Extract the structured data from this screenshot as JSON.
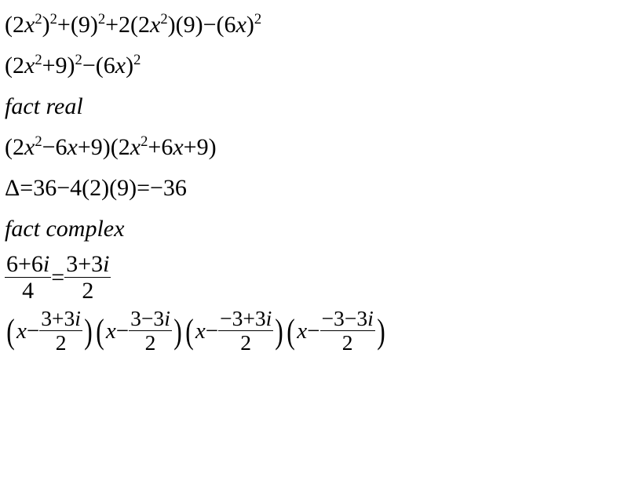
{
  "lines": {
    "l1_p1": "(2",
    "l1_p2": ")",
    "l1_p3": "+(9)",
    "l1_p4": "+2(2",
    "l1_p5": ")(9)−(6",
    "l1_p6": ")",
    "l2_p1": "(2",
    "l2_p2": "+9)",
    "l2_p3": "−(6",
    "l2_p4": ")",
    "l3": "fact real",
    "l4_p1": "(2",
    "l4_p2": "−6",
    "l4_p3": "+9)(2",
    "l4_p4": "+6",
    "l4_p5": "+9)",
    "l5": "Δ=36−4(2)(9)=−36",
    "l6": "fact complex",
    "l7_num1": "6+6",
    "l7_den1": "4",
    "l7_eq": "=",
    "l7_num2": "3+3",
    "l7_den2": "2",
    "l8_f1_num": "3+3",
    "l8_f1_den": "2",
    "l8_f2_num": "3−3",
    "l8_f2_den": "2",
    "l8_f3_num": "−3+3",
    "l8_f3_den": "2",
    "l8_f4_num": "−3−3",
    "l8_f4_den": "2",
    "x": "x",
    "i": "i",
    "sup2": "2",
    "minus": "−",
    "lparen": "(",
    "rparen": ")"
  }
}
